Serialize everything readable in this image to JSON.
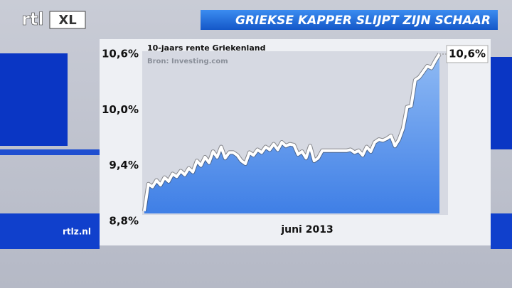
{
  "logo": {
    "text": "rtl",
    "badge": "XL"
  },
  "footer": "rtlz.nl",
  "chart_data": {
    "type": "area",
    "title": "GRIEKSE KAPPER SLIJPT ZIJN SCHAAR",
    "subtitle": "10-jaars rente Griekenland",
    "source": "Bron: Investing.com",
    "x_label": "juni 2013",
    "color": "#ffffff",
    "fill_color": "#4f8ff0",
    "ylim": [
      8.8,
      10.6
    ],
    "yticks": [
      {
        "value": 8.8,
        "label": "8,8%"
      },
      {
        "value": 9.4,
        "label": "9,4%"
      },
      {
        "value": 10.0,
        "label": "10,0%"
      },
      {
        "value": 10.6,
        "label": "10,6%"
      }
    ],
    "values": [
      8.91,
      9.2,
      9.17,
      9.24,
      9.19,
      9.27,
      9.23,
      9.31,
      9.28,
      9.34,
      9.3,
      9.37,
      9.33,
      9.45,
      9.4,
      9.49,
      9.43,
      9.55,
      9.49,
      9.6,
      9.48,
      9.54,
      9.54,
      9.51,
      9.45,
      9.42,
      9.54,
      9.51,
      9.57,
      9.54,
      9.6,
      9.57,
      9.63,
      9.57,
      9.65,
      9.61,
      9.63,
      9.62,
      9.52,
      9.55,
      9.48,
      9.61,
      9.45,
      9.48,
      9.56,
      9.56,
      9.56,
      9.56,
      9.56,
      9.56,
      9.56,
      9.57,
      9.54,
      9.56,
      9.51,
      9.6,
      9.55,
      9.65,
      9.68,
      9.67,
      9.69,
      9.72,
      9.61,
      9.68,
      9.8,
      10.03,
      10.04,
      10.32,
      10.35,
      10.41,
      10.47,
      10.45,
      10.53,
      10.6
    ],
    "value_labels": [
      null,
      null,
      null,
      null,
      null,
      null,
      null,
      null,
      null,
      null,
      null,
      null,
      null,
      null,
      null,
      null,
      null,
      null,
      null,
      null,
      null,
      null,
      null,
      null,
      null,
      null,
      null,
      null,
      null,
      null,
      null,
      null,
      null,
      null,
      null,
      null,
      null,
      null,
      null,
      null,
      null,
      null,
      null,
      null,
      null,
      null,
      null,
      null,
      null,
      null,
      null,
      null,
      null,
      null,
      null,
      null,
      null,
      null,
      null,
      null,
      null,
      null,
      null,
      null,
      null,
      null,
      null,
      null,
      null,
      null,
      null,
      null,
      null,
      "10,6%"
    ]
  }
}
